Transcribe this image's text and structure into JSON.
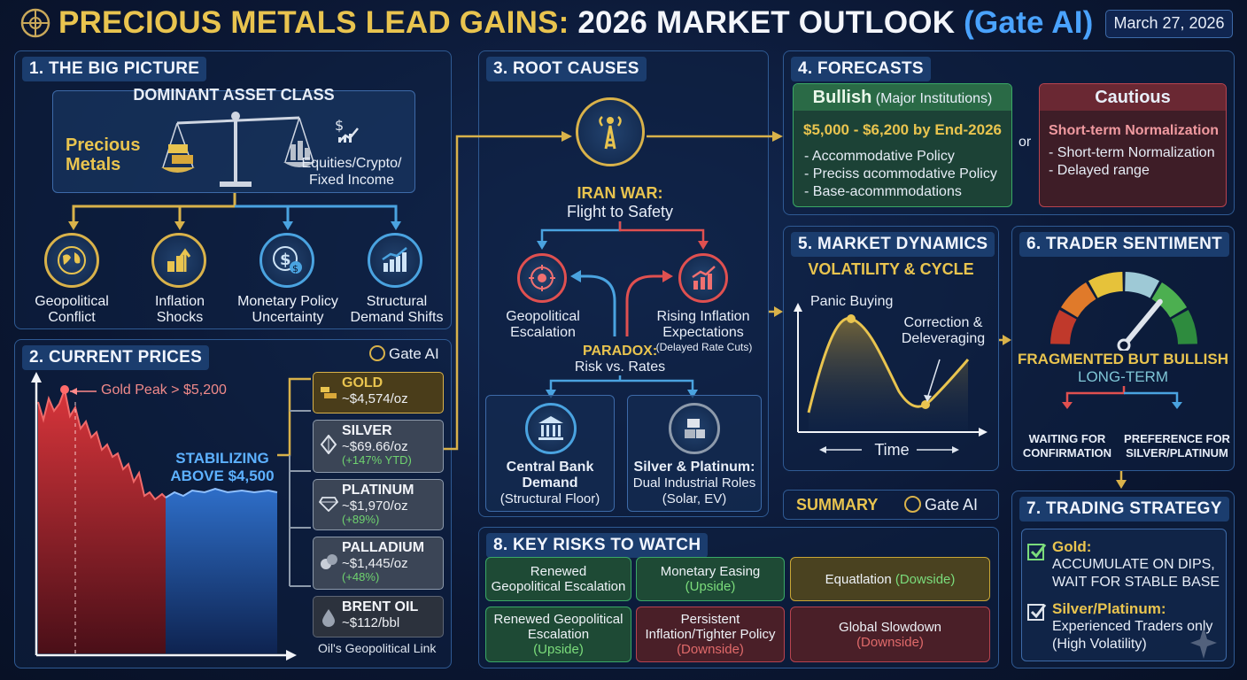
{
  "header": {
    "title_part1": "PRECIOUS METALS LEAD GAINS:",
    "title_part2": "2026 MARKET OUTLOOK",
    "title_part3": "(Gate AI)",
    "date": "March 27, 2026"
  },
  "big_picture": {
    "title": "1. THE BIG PICTURE",
    "dominant_label": "DOMINANT ASSET CLASS",
    "left_asset": "Precious\nMetals",
    "right_asset": "Equities/Crypto/\nFixed Income",
    "drivers": [
      {
        "icon": "globe-icon",
        "label": "Geopolitical\nConflict"
      },
      {
        "icon": "inflation-icon",
        "label": "Inflation\nShocks"
      },
      {
        "icon": "dollar-coin-icon",
        "label": "Monetary Policy\nUncertainty"
      },
      {
        "icon": "bar-chart-icon",
        "label": "Structural\nDemand Shifts"
      }
    ]
  },
  "current_prices": {
    "title": "2. CURRENT PRICES",
    "brand": "Gate AI",
    "peak_label": "Gold Peak > $5,200",
    "stabilizing_label": "STABILIZING\nABOVE $4,500",
    "items": [
      {
        "name": "GOLD",
        "price": "~$4,574/oz",
        "change": "",
        "color": "#d9b24a"
      },
      {
        "name": "SILVER",
        "price": "~$69.66/oz",
        "change": "(+147% YTD)",
        "color": "#8d9aab"
      },
      {
        "name": "PLATINUM",
        "price": "~$1,970/oz",
        "change": "(+89%)",
        "color": "#8d9aab"
      },
      {
        "name": "PALLADIUM",
        "price": "~$1,445/oz",
        "change": "(+48%)",
        "color": "#8d9aab"
      },
      {
        "name": "BRENT OIL",
        "price": "~$112/bbl",
        "change": "",
        "color": "#5e6675"
      }
    ],
    "oil_note": "Oil's Geopolitical Link"
  },
  "root_causes": {
    "title": "3. ROOT CAUSES",
    "main_title": "IRAN WAR:",
    "main_sub": "Flight to Safety",
    "left": "Geopolitical\nEscalation",
    "right": "Rising Inflation\nExpectations",
    "right_note": "(Delayed Rate Cuts)",
    "paradox": "PARADOX:",
    "paradox_sub": "Risk vs. Rates",
    "box1_title": "Central Bank\nDemand",
    "box1_sub": "(Structural Floor)",
    "box2_title": "Silver & Platinum:",
    "box2_sub": "Dual Industrial Roles\n(Solar, EV)"
  },
  "forecasts": {
    "title": "4. FORECASTS",
    "bullish_title": "Bullish",
    "bullish_sub": "(Major Institutions)",
    "bullish_range": "$5,000 - $6,200 by End-2026",
    "bullish_points": [
      "- Accommodative Policy",
      "- Preciss ɑcommodative Policy",
      "- Base-acommmodations"
    ],
    "or": "or",
    "cautious_title": "Cautious",
    "cautious_sub": "Short-term Normalization",
    "cautious_points": [
      "- Short-term Normalization",
      "- Delayed range"
    ]
  },
  "market_dynamics": {
    "title": "5. MARKET DYNAMICS",
    "subtitle": "VOLATILITY & CYCLE",
    "peak": "Panic Buying",
    "trough": "Correction &\nDeleveraging",
    "x_label": "Time"
  },
  "trader_sentiment": {
    "title": "6. TRADER SENTIMENT",
    "headline": "FRAGMENTED BUT BULLISH",
    "sub": "LONG-TERM",
    "left": "WAITING FOR\nCONFIRMATION",
    "right": "PREFERENCE FOR\nSILVER/PLATINUM",
    "gauge_level": 0.72,
    "gauge_colors": [
      "#c0392b",
      "#e07a2a",
      "#e6c23a",
      "#9ec9d6",
      "#4caf50",
      "#2e8b3e"
    ]
  },
  "summary": {
    "label": "SUMMARY",
    "brand": "Gate AI"
  },
  "trading_strategy": {
    "title": "7. TRADING STRATEGY",
    "gold_title": "Gold:",
    "gold_text": "ACCUMULATE ON DIPS,\nWAIT FOR STABLE BASE",
    "sp_title": "Silver/Platinum:",
    "sp_text": "Experienced Traders only\n(High Volatility)"
  },
  "key_risks": {
    "title": "8. KEY RISKS TO WATCH",
    "row1": [
      {
        "text": "Renewed\nGeopolitical Escalation",
        "tag": "",
        "style": "rg"
      },
      {
        "text": "Monetary Easing",
        "tag": "(Upside)",
        "style": "rg"
      },
      {
        "text": "Equatlation",
        "tag": "(Dowside)",
        "style": "ry"
      }
    ],
    "row2": [
      {
        "text": "Renewed Geopolitical\nEscalation",
        "tag": "(Upside)",
        "style": "rg"
      },
      {
        "text": "Persistent\nInflation/Tighter Policy",
        "tag": "(Downside)",
        "style": "rr"
      },
      {
        "text": "Global Slowdown",
        "tag": "(Downside)",
        "style": "rr"
      }
    ]
  }
}
